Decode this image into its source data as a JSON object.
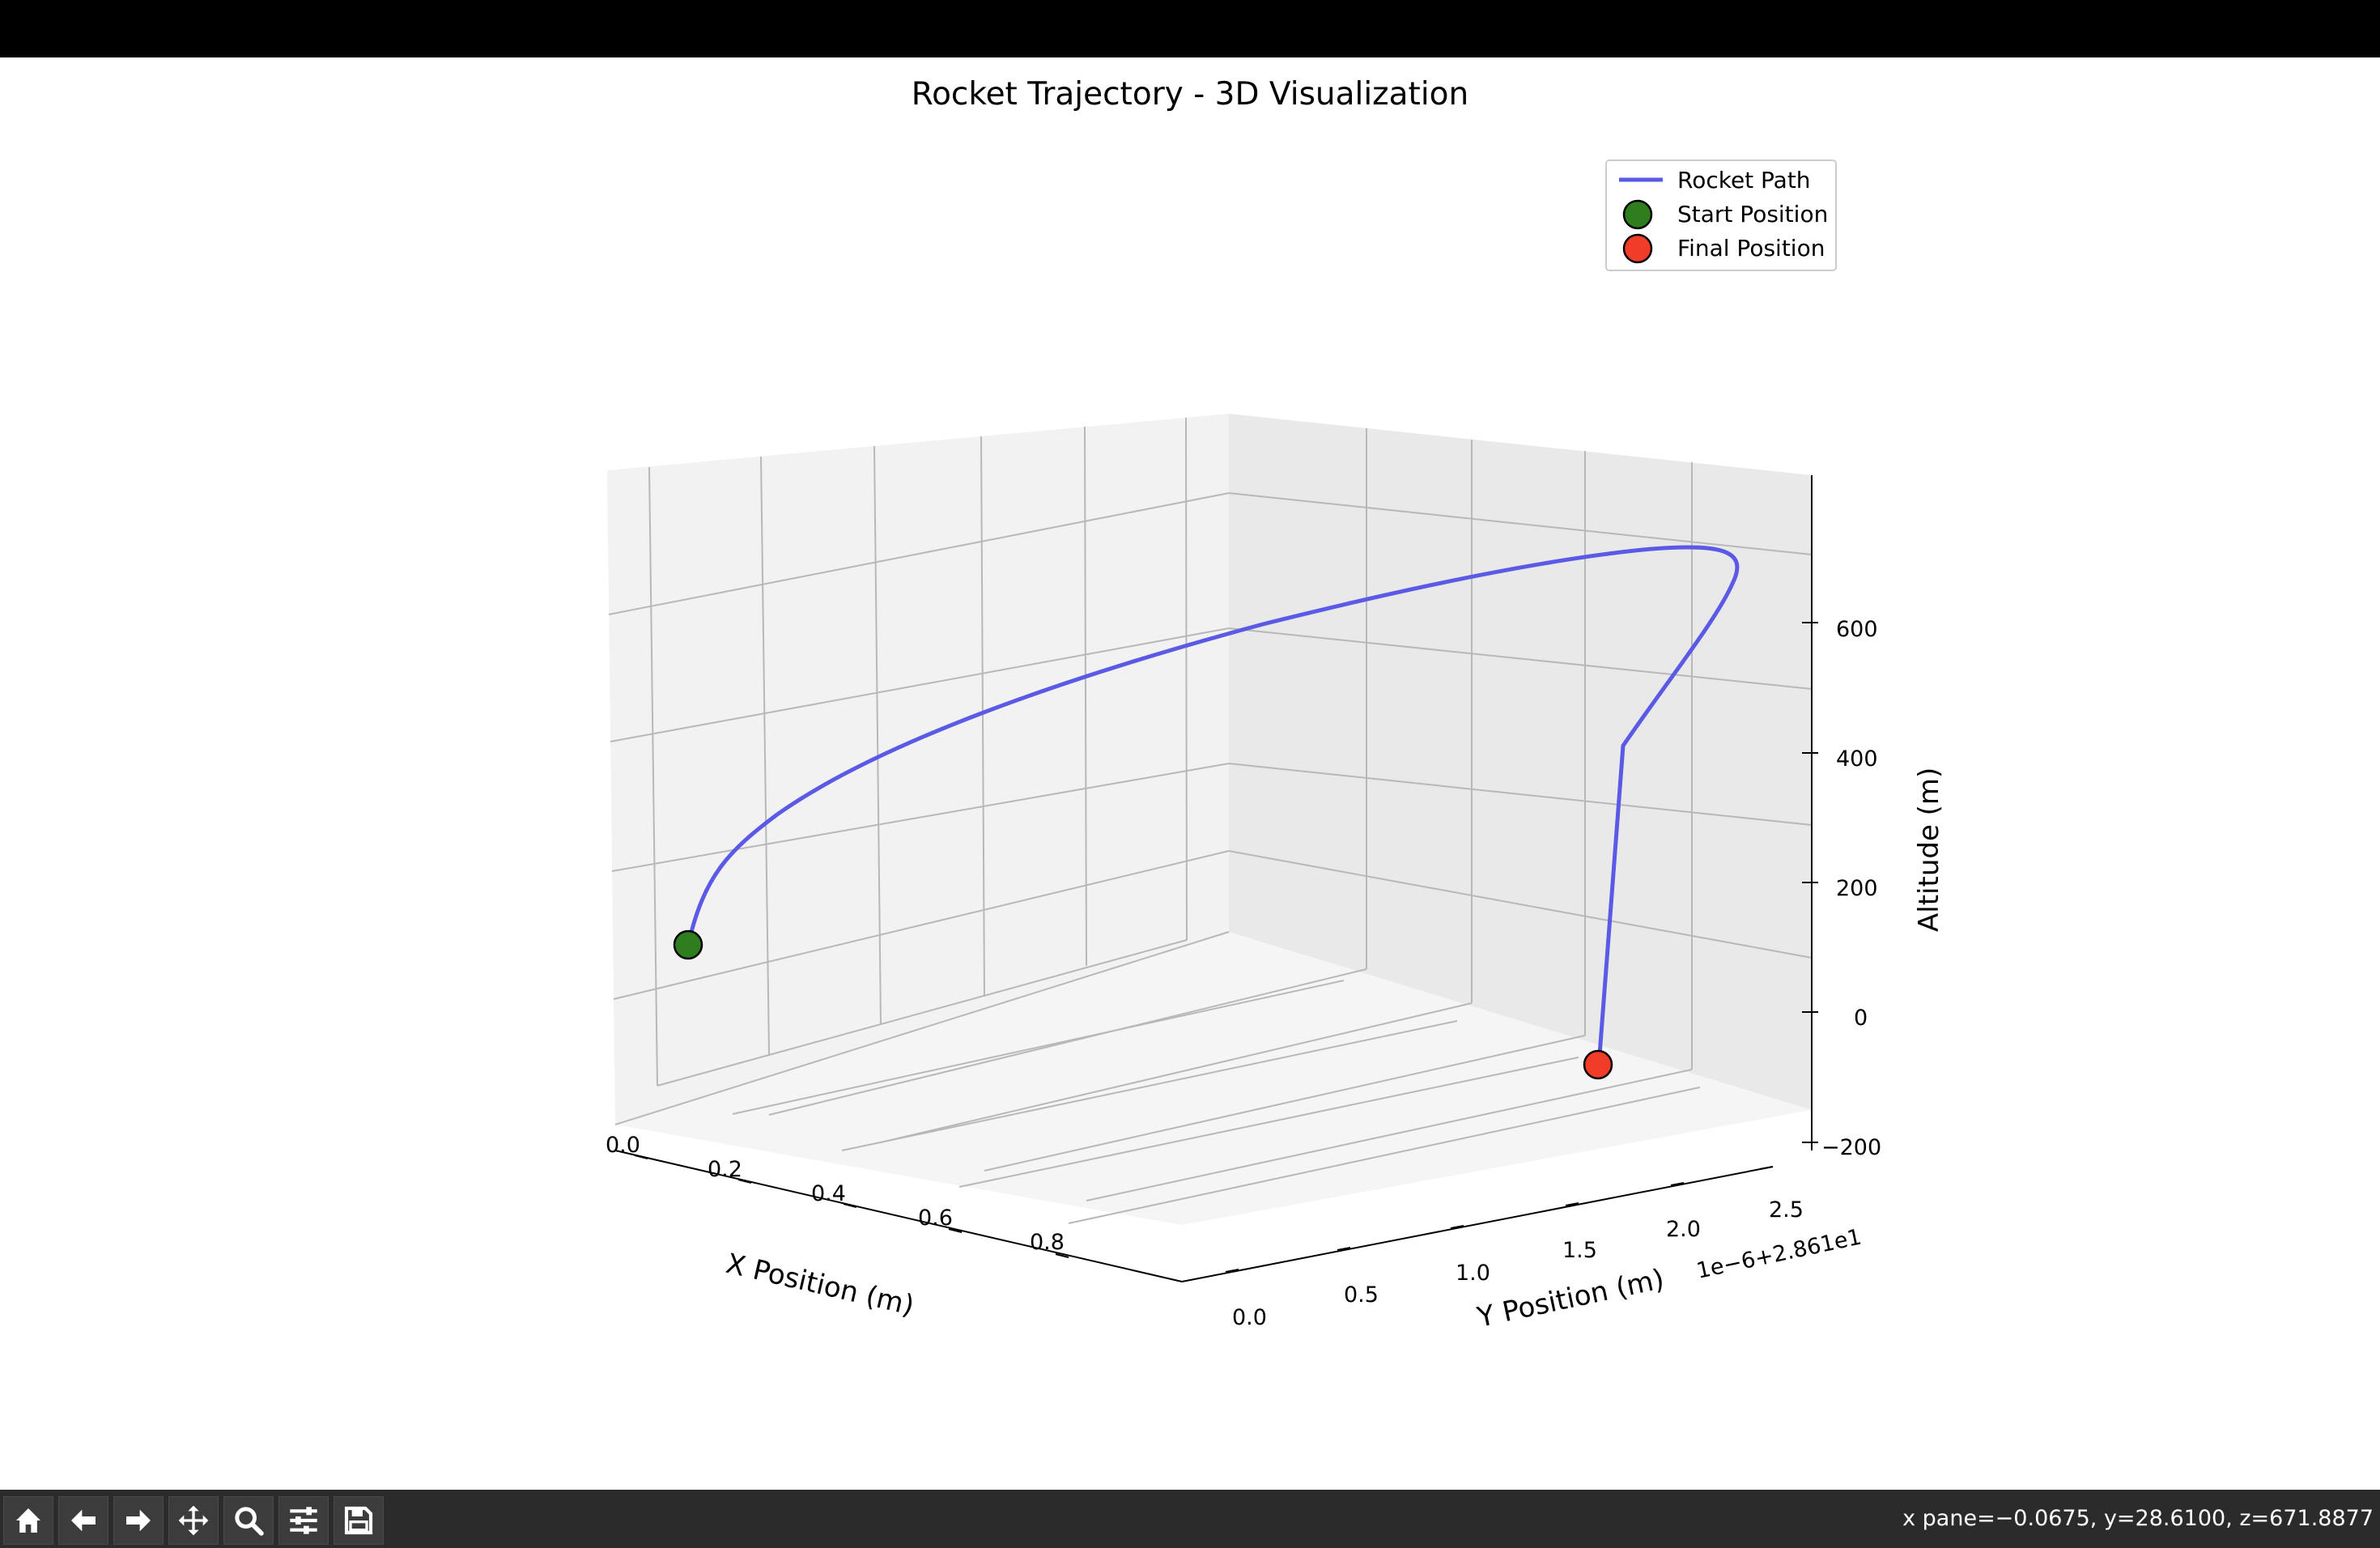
{
  "window": {
    "title": ""
  },
  "chart_data": {
    "type": "line3d",
    "title": "Rocket Trajectory - 3D Visualization",
    "xlabel": "X Position (m)",
    "ylabel": "Y Position (m)",
    "zlabel": "Altitude (m)",
    "y_offset_text": "1e−6+2.861e1",
    "x_ticks": [
      "0.0",
      "0.2",
      "0.4",
      "0.6",
      "0.8"
    ],
    "y_ticks": [
      "0.0",
      "0.5",
      "1.0",
      "1.5",
      "2.0",
      "2.5"
    ],
    "z_ticks": [
      "600",
      "400",
      "200",
      "0",
      "−200"
    ],
    "zlim": [
      -200,
      600
    ],
    "grid": true,
    "legend_placement": "upper-right",
    "series": [
      {
        "name": "Rocket Path",
        "color": "#5a5ae6",
        "kind": "line"
      },
      {
        "name": "Start Position",
        "color": "#2e7d1e",
        "kind": "marker",
        "x": 0.0,
        "y": 0.0,
        "z": 0
      },
      {
        "name": "Final Position",
        "color": "#f03c28",
        "kind": "marker",
        "x": 0.9,
        "y": 2.6,
        "z": 0
      }
    ]
  },
  "toolbar": {
    "buttons": [
      {
        "name": "home-button",
        "icon": "home-icon"
      },
      {
        "name": "back-button",
        "icon": "arrow-left-icon"
      },
      {
        "name": "forward-button",
        "icon": "arrow-right-icon"
      },
      {
        "name": "pan-button",
        "icon": "move-icon"
      },
      {
        "name": "zoom-button",
        "icon": "magnifier-icon"
      },
      {
        "name": "configure-subplots-button",
        "icon": "sliders-icon"
      },
      {
        "name": "save-button",
        "icon": "floppy-disk-icon"
      }
    ],
    "coordinates": "x pane=−0.0675, y=28.6100, z=671.8877"
  }
}
